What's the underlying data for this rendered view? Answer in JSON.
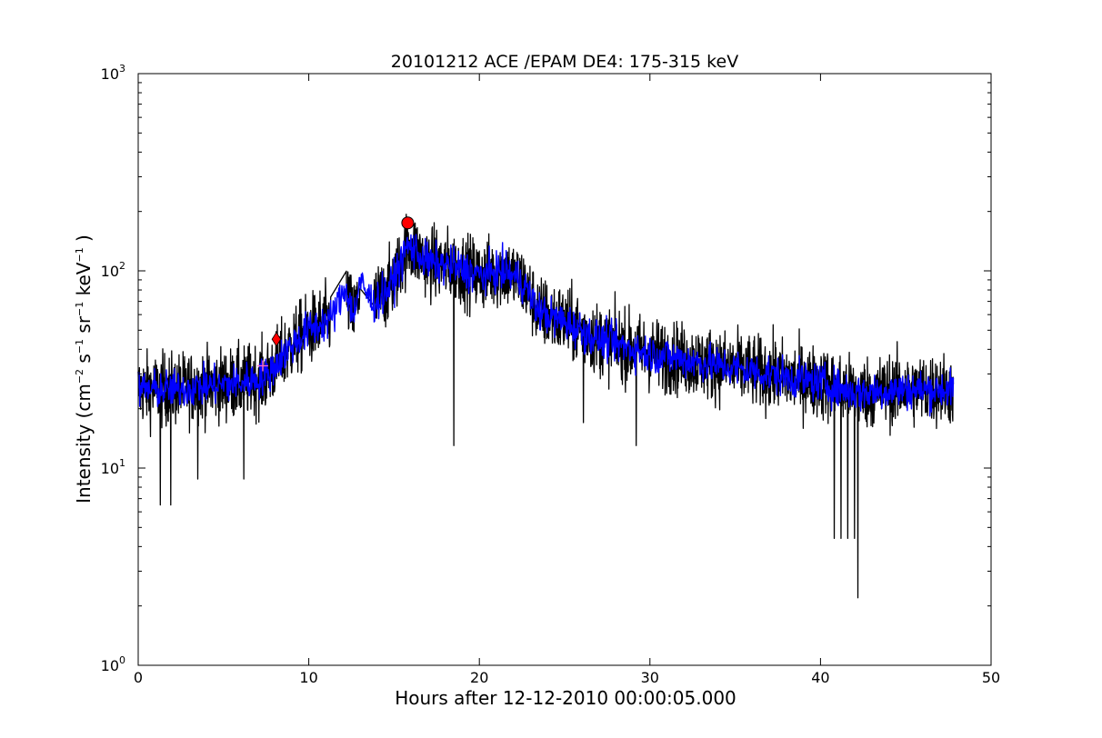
{
  "chart_data": {
    "type": "line",
    "title": "20101212 ACE /EPAM DE4: 175-315 keV",
    "xlabel": "Hours after 12-12-2010 00:00:05.000",
    "ylabel": {
      "prefix": "Intensity (cm",
      "exp1": "−2",
      "s": " s",
      "exp2": "−1",
      "sr": " sr",
      "exp3": "−1",
      "kev": " keV",
      "exp4": "−1",
      "suffix": " )"
    },
    "xlim": [
      0,
      50
    ],
    "ylim": [
      1,
      1000
    ],
    "yscale": "log",
    "grid": false,
    "x_ticks": [
      "0",
      "10",
      "20",
      "30",
      "40",
      "50"
    ],
    "y_ticks": [
      {
        "base": "10",
        "exp": "0"
      },
      {
        "base": "10",
        "exp": "1"
      },
      {
        "base": "10",
        "exp": "2"
      },
      {
        "base": "10",
        "exp": "3"
      }
    ],
    "series": [
      {
        "color": "#000000",
        "style": "raw-noisy",
        "x_range": [
          0,
          47.8
        ],
        "trend": [
          [
            0,
            25
          ],
          [
            2,
            25
          ],
          [
            4,
            26
          ],
          [
            6,
            27
          ],
          [
            7.5,
            29
          ],
          [
            8,
            33
          ],
          [
            9,
            42
          ],
          [
            10,
            50
          ],
          [
            11.3,
            57
          ],
          [
            12.2,
            75
          ],
          [
            12.6,
            58
          ],
          [
            13.0,
            80
          ],
          [
            13.8,
            68
          ],
          [
            14.5,
            78
          ],
          [
            15.0,
            90
          ],
          [
            15.8,
            135
          ],
          [
            16.3,
            125
          ],
          [
            17,
            110
          ],
          [
            18.5,
            105
          ],
          [
            20,
            95
          ],
          [
            21.5,
            100
          ],
          [
            22.5,
            88
          ],
          [
            23.5,
            62
          ],
          [
            25,
            55
          ],
          [
            27,
            45
          ],
          [
            30,
            38
          ],
          [
            35,
            32
          ],
          [
            40,
            27
          ],
          [
            42,
            24
          ],
          [
            45,
            25
          ],
          [
            47.8,
            25
          ]
        ],
        "deep_dips": [
          [
            42.2,
            2.2
          ],
          [
            41.2,
            4.4
          ],
          [
            41.6,
            4.4
          ],
          [
            42.0,
            4.4
          ],
          [
            40.8,
            4.4
          ],
          [
            1.3,
            6.5
          ],
          [
            1.9,
            6.5
          ],
          [
            3.5,
            8.8
          ],
          [
            6.2,
            8.8
          ],
          [
            18.5,
            13
          ],
          [
            29.2,
            13
          ],
          [
            26.1,
            17
          ]
        ],
        "gaps": [
          [
            11.3,
            12.2
          ],
          [
            13.0,
            13.8
          ]
        ]
      },
      {
        "color": "#0000ff",
        "style": "smoothed",
        "x_range": [
          0,
          47.8
        ],
        "trend": [
          [
            0,
            25
          ],
          [
            2,
            25
          ],
          [
            4,
            26
          ],
          [
            6,
            27
          ],
          [
            7.5,
            29
          ],
          [
            8,
            33
          ],
          [
            9,
            42
          ],
          [
            10,
            50
          ],
          [
            11.3,
            57
          ],
          [
            12.2,
            83
          ],
          [
            12.6,
            58
          ],
          [
            13.0,
            87
          ],
          [
            13.8,
            68
          ],
          [
            14.5,
            78
          ],
          [
            15.0,
            90
          ],
          [
            15.8,
            135
          ],
          [
            16.3,
            125
          ],
          [
            17,
            110
          ],
          [
            18.5,
            105
          ],
          [
            20,
            95
          ],
          [
            21.5,
            100
          ],
          [
            22.5,
            88
          ],
          [
            23.5,
            62
          ],
          [
            25,
            55
          ],
          [
            27,
            45
          ],
          [
            30,
            38
          ],
          [
            35,
            32
          ],
          [
            40,
            27
          ],
          [
            42,
            24
          ],
          [
            45,
            25
          ],
          [
            47.8,
            25
          ]
        ]
      }
    ],
    "markers": [
      {
        "shape": "circle",
        "color": "#ff0000",
        "x": 15.8,
        "y": 175
      },
      {
        "shape": "diamond",
        "color": "#ff0000",
        "x": 8.1,
        "y": 45
      },
      {
        "shape": "plus",
        "color": "#ff66cc",
        "x": 7.3,
        "y": 33
      }
    ]
  }
}
